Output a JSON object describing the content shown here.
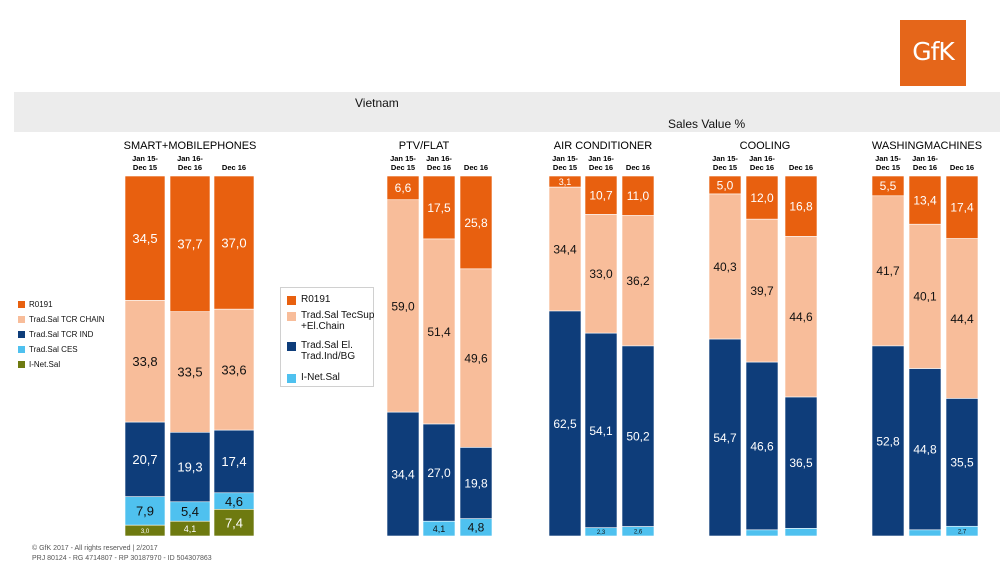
{
  "logo_text": "GfK",
  "header": {
    "country": "Vietnam",
    "measure": "Sales Value %"
  },
  "colors": {
    "R0191": "#e8600f",
    "Chain": "#f8bd9a",
    "Ind": "#0e3d7a",
    "CES": "#4fc1ef",
    "INet": "#6e7a10"
  },
  "legends": [
    {
      "items": [
        {
          "label": "R0191",
          "color": "#e8600f"
        },
        {
          "label": "Trad.Sal TCR CHAIN",
          "color": "#f8bd9a"
        },
        {
          "label": "Trad.Sal TCR IND",
          "color": "#0e3d7a"
        },
        {
          "label": "Trad.Sal CES",
          "color": "#4fc1ef"
        },
        {
          "label": "I-Net.Sal",
          "color": "#6e7a10"
        }
      ]
    },
    {
      "items": [
        {
          "label": "R0191",
          "color": "#e8600f"
        },
        {
          "label": "Trad.Sal TecSup\n+El.Chain",
          "color": "#f8bd9a"
        },
        {
          "label": "Trad.Sal El.\nTrad.Ind/BG",
          "color": "#0e3d7a"
        },
        {
          "label": "I-Net.Sal",
          "color": "#4fc1ef"
        }
      ]
    }
  ],
  "chart_data": {
    "type": "bar",
    "stacked": true,
    "unit": "%",
    "ylim": [
      0,
      100
    ],
    "groups": [
      {
        "title": "SMART+MOBILEPHONES",
        "periods": [
          "Jan 15-\nDec 15",
          "Jan 16-\nDec 16",
          "Dec 16"
        ],
        "series": [
          {
            "name": "R0191",
            "color": "#e8600f",
            "values": [
              34.5,
              37.7,
              37.0
            ],
            "labels": [
              "34,5",
              "37,7",
              "37,0"
            ]
          },
          {
            "name": "Trad.Sal TCR CHAIN",
            "color": "#f8bd9a",
            "values": [
              33.8,
              33.5,
              33.6
            ],
            "labels": [
              "33,8",
              "33,5",
              "33,6"
            ]
          },
          {
            "name": "Trad.Sal TCR IND",
            "color": "#0e3d7a",
            "values": [
              20.7,
              19.3,
              17.4
            ],
            "labels": [
              "20,7",
              "19,3",
              "17,4"
            ]
          },
          {
            "name": "Trad.Sal CES",
            "color": "#4fc1ef",
            "values": [
              7.9,
              5.4,
              4.6
            ],
            "labels": [
              "7,9",
              "5,4",
              "4,6"
            ]
          },
          {
            "name": "I-Net.Sal",
            "color": "#6e7a10",
            "values": [
              3.0,
              4.1,
              7.4
            ],
            "labels": [
              "3,0",
              "4,1",
              "7,4"
            ]
          }
        ]
      },
      {
        "title": "PTV/FLAT",
        "periods": [
          "Jan 15-\nDec 15",
          "Jan 16-\nDec 16",
          "Dec 16"
        ],
        "series": [
          {
            "name": "R0191",
            "color": "#e8600f",
            "values": [
              6.6,
              17.5,
              25.8
            ],
            "labels": [
              "6,6",
              "17,5",
              "25,8"
            ]
          },
          {
            "name": "Trad.Sal TecSup\n+El.Chain",
            "color": "#f8bd9a",
            "values": [
              59.0,
              51.4,
              49.6
            ],
            "labels": [
              "59,0",
              "51,4",
              "49,6"
            ]
          },
          {
            "name": "Trad.Sal El.\nTrad.Ind/BG",
            "color": "#0e3d7a",
            "values": [
              34.4,
              27.0,
              19.8
            ],
            "labels": [
              "34,4",
              "27,0",
              "19,8"
            ]
          },
          {
            "name": "I-Net.Sal",
            "color": "#4fc1ef",
            "values": [
              0,
              4.1,
              4.8
            ],
            "labels": [
              "",
              "4,1",
              "4,8"
            ]
          }
        ]
      },
      {
        "title": "AIR CONDITIONER",
        "periods": [
          "Jan 15-\nDec 15",
          "Jan 16-\nDec 16",
          "Dec 16"
        ],
        "series": [
          {
            "name": "R0191",
            "color": "#e8600f",
            "values": [
              3.1,
              10.7,
              11.0
            ],
            "labels": [
              "3,1",
              "10,7",
              "11,0"
            ]
          },
          {
            "name": "Trad.Sal TecSup\n+El.Chain",
            "color": "#f8bd9a",
            "values": [
              34.4,
              33.0,
              36.2
            ],
            "labels": [
              "34,4",
              "33,0",
              "36,2"
            ]
          },
          {
            "name": "Trad.Sal El.\nTrad.Ind/BG",
            "color": "#0e3d7a",
            "values": [
              62.5,
              54.1,
              50.2
            ],
            "labels": [
              "62,5",
              "54,1",
              "50,2"
            ]
          },
          {
            "name": "I-Net.Sal",
            "color": "#4fc1ef",
            "values": [
              0,
              2.3,
              2.6
            ],
            "labels": [
              "",
              "2,3",
              "2,6"
            ]
          }
        ]
      },
      {
        "title": "COOLING",
        "periods": [
          "Jan 15-\nDec 15",
          "Jan 16-\nDec 16",
          "Dec 16"
        ],
        "series": [
          {
            "name": "R0191",
            "color": "#e8600f",
            "values": [
              5.0,
              12.0,
              16.8
            ],
            "labels": [
              "5,0",
              "12,0",
              "16,8"
            ]
          },
          {
            "name": "Trad.Sal TecSup\n+El.Chain",
            "color": "#f8bd9a",
            "values": [
              40.3,
              39.7,
              44.6
            ],
            "labels": [
              "40,3",
              "39,7",
              "44,6"
            ]
          },
          {
            "name": "Trad.Sal El.\nTrad.Ind/BG",
            "color": "#0e3d7a",
            "values": [
              54.7,
              46.6,
              36.5
            ],
            "labels": [
              "54,7",
              "46,6",
              "36,5"
            ]
          },
          {
            "name": "I-Net.Sal",
            "color": "#4fc1ef",
            "values": [
              0,
              1.7,
              2.1
            ],
            "labels": [
              "",
              "",
              ""
            ]
          }
        ]
      },
      {
        "title": "WASHINGMACHINES",
        "periods": [
          "Jan 15-\nDec 15",
          "Jan 16-\nDec 16",
          "Dec 16"
        ],
        "series": [
          {
            "name": "R0191",
            "color": "#e8600f",
            "values": [
              5.5,
              13.4,
              17.4
            ],
            "labels": [
              "5,5",
              "13,4",
              "17,4"
            ]
          },
          {
            "name": "Trad.Sal TecSup\n+El.Chain",
            "color": "#f8bd9a",
            "values": [
              41.7,
              40.1,
              44.4
            ],
            "labels": [
              "41,7",
              "40,1",
              "44,4"
            ]
          },
          {
            "name": "Trad.Sal El.\nTrad.Ind/BG",
            "color": "#0e3d7a",
            "values": [
              52.8,
              44.8,
              35.5
            ],
            "labels": [
              "52,8",
              "44,8",
              "35,5"
            ]
          },
          {
            "name": "I-Net.Sal",
            "color": "#4fc1ef",
            "values": [
              0,
              1.7,
              2.7
            ],
            "labels": [
              "",
              "",
              "2,7"
            ]
          }
        ]
      }
    ]
  },
  "footer": {
    "line1": "© GfK 2017 - All rights reserved | 2/2017",
    "line2": "PRJ 80124 - RG 4714807 - RP 30187970 - ID 504307863"
  }
}
